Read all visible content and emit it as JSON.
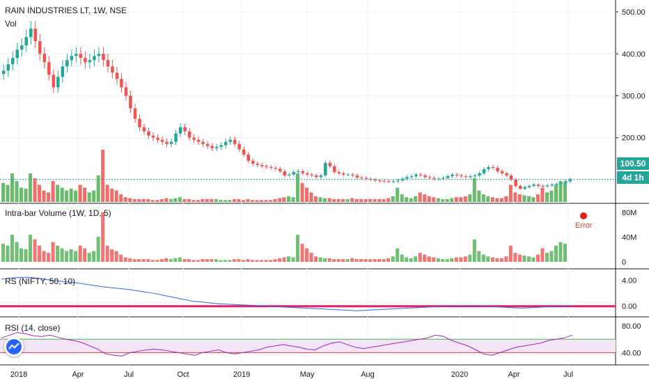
{
  "header": {
    "title": "RAIN INDUSTRIES LT, 1W, NSE",
    "vol_label": "Vol"
  },
  "price_axis": {
    "ticks": [
      "500.00",
      "400.00",
      "300.00",
      "200.00"
    ],
    "last_price": "100.50",
    "countdown": "4d 1h"
  },
  "panes": {
    "intrabar": {
      "label": "Intra-bar Volume (1W, 1D, 5)",
      "ticks": [
        "80M",
        "40M",
        "0"
      ],
      "error_label": "Error"
    },
    "rs": {
      "label": "RS (NIFTY, 50, 10)",
      "ticks": [
        "4.00",
        "0.00"
      ]
    },
    "rsi": {
      "label": "RSI (14, close)",
      "ticks": [
        "80.00",
        "40.00"
      ]
    }
  },
  "time_axis": {
    "labels": [
      "2018",
      "Apr",
      "Jul",
      "Oct",
      "2019",
      "May",
      "Aug",
      "2020",
      "Apr",
      "Jul"
    ]
  },
  "colors": {
    "up": "#26a69a",
    "down": "#ef5350",
    "vol_up": "#4caf50",
    "vol_down": "#ef5350",
    "rs_line": "#2962ff",
    "rs_zero": "#e91e63",
    "rsi_line": "#9c27b0",
    "rsi_band": "#f3e5f5",
    "last_price_bg": "#26a69a"
  },
  "chart_data": {
    "type": "candlestick",
    "title": "RAIN INDUSTRIES LT, 1W, NSE",
    "x": [
      "2018",
      "Apr",
      "Jul",
      "Oct",
      "2019",
      "May",
      "Aug",
      "2020",
      "Apr",
      "Jul"
    ],
    "ylim": [
      60,
      520
    ],
    "close_series": [
      360,
      375,
      390,
      410,
      420,
      440,
      460,
      430,
      400,
      380,
      350,
      320,
      345,
      370,
      385,
      395,
      400,
      390,
      380,
      385,
      395,
      400,
      385,
      370,
      355,
      340,
      320,
      300,
      270,
      245,
      225,
      215,
      205,
      200,
      195,
      190,
      185,
      190,
      210,
      225,
      215,
      200,
      195,
      190,
      185,
      180,
      175,
      178,
      182,
      190,
      195,
      185,
      172,
      160,
      145,
      138,
      135,
      132,
      130,
      128,
      126,
      120,
      110,
      112,
      118,
      120,
      115,
      112,
      110,
      106,
      110,
      140,
      132,
      118,
      115,
      112,
      112,
      110,
      105,
      104,
      102,
      100,
      98,
      97,
      96,
      95,
      96,
      98,
      102,
      106,
      108,
      112,
      110,
      106,
      104,
      102,
      102,
      104,
      108,
      112,
      110,
      108,
      106,
      108,
      110,
      115,
      125,
      130,
      128,
      120,
      115,
      110,
      100,
      85,
      78,
      82,
      85,
      88,
      85,
      84,
      86,
      88,
      90,
      92,
      96,
      100.5
    ],
    "last_price": 100.5,
    "volume_series": [
      20,
      18,
      30,
      22,
      15,
      14,
      30,
      25,
      18,
      12,
      10,
      22,
      18,
      15,
      12,
      14,
      12,
      18,
      15,
      10,
      12,
      28,
      55,
      18,
      14,
      12,
      8,
      5,
      4,
      3,
      3,
      3,
      3,
      2,
      2,
      3,
      4,
      3,
      4,
      5,
      3,
      3,
      2,
      2,
      3,
      3,
      3,
      3,
      2,
      2,
      2,
      3,
      3,
      2,
      3,
      2,
      2,
      2,
      2,
      2,
      3,
      4,
      5,
      6,
      5,
      30,
      20,
      15,
      10,
      6,
      5,
      4,
      4,
      3,
      3,
      3,
      3,
      4,
      3,
      3,
      3,
      3,
      3,
      3,
      3,
      4,
      6,
      15,
      8,
      5,
      4,
      6,
      10,
      8,
      6,
      5,
      4,
      3,
      3,
      4,
      5,
      5,
      6,
      8,
      25,
      12,
      8,
      6,
      5,
      4,
      4,
      6,
      18,
      10,
      8,
      7,
      6,
      5,
      8,
      15,
      10,
      12,
      18,
      22,
      20
    ],
    "rs_series": [
      4.2,
      4.4,
      4.5,
      4.3,
      4.0,
      3.8,
      3.6,
      3.3,
      3.0,
      2.8,
      2.6,
      2.3,
      2.0,
      1.6,
      1.2,
      0.8,
      0.6,
      0.4,
      0.3,
      0.2,
      0.1,
      0.0,
      -0.1,
      -0.2,
      -0.3,
      -0.4,
      -0.5,
      -0.6,
      -0.7,
      -0.6,
      -0.5,
      -0.4,
      -0.3,
      -0.2,
      -0.1,
      0.0,
      0.0,
      0.0,
      0.0,
      -0.1,
      -0.2,
      -0.3,
      -0.2,
      -0.1,
      0.0,
      0.0
    ],
    "rs_zero": 0.0,
    "rsi_series": [
      62,
      66,
      70,
      68,
      65,
      64,
      66,
      63,
      60,
      58,
      55,
      50,
      45,
      38,
      36,
      35,
      40,
      42,
      44,
      45,
      44,
      42,
      40,
      38,
      36,
      40,
      42,
      44,
      40,
      38,
      40,
      42,
      44,
      48,
      50,
      52,
      50,
      48,
      45,
      44,
      50,
      54,
      56,
      52,
      48,
      46,
      48,
      50,
      52,
      54,
      56,
      58,
      60,
      62,
      66,
      64,
      58,
      54,
      50,
      44,
      38,
      36,
      40,
      44,
      48,
      50,
      52,
      54,
      58,
      60,
      62,
      66
    ],
    "rsi_upper": 60,
    "rsi_lower": 40
  }
}
